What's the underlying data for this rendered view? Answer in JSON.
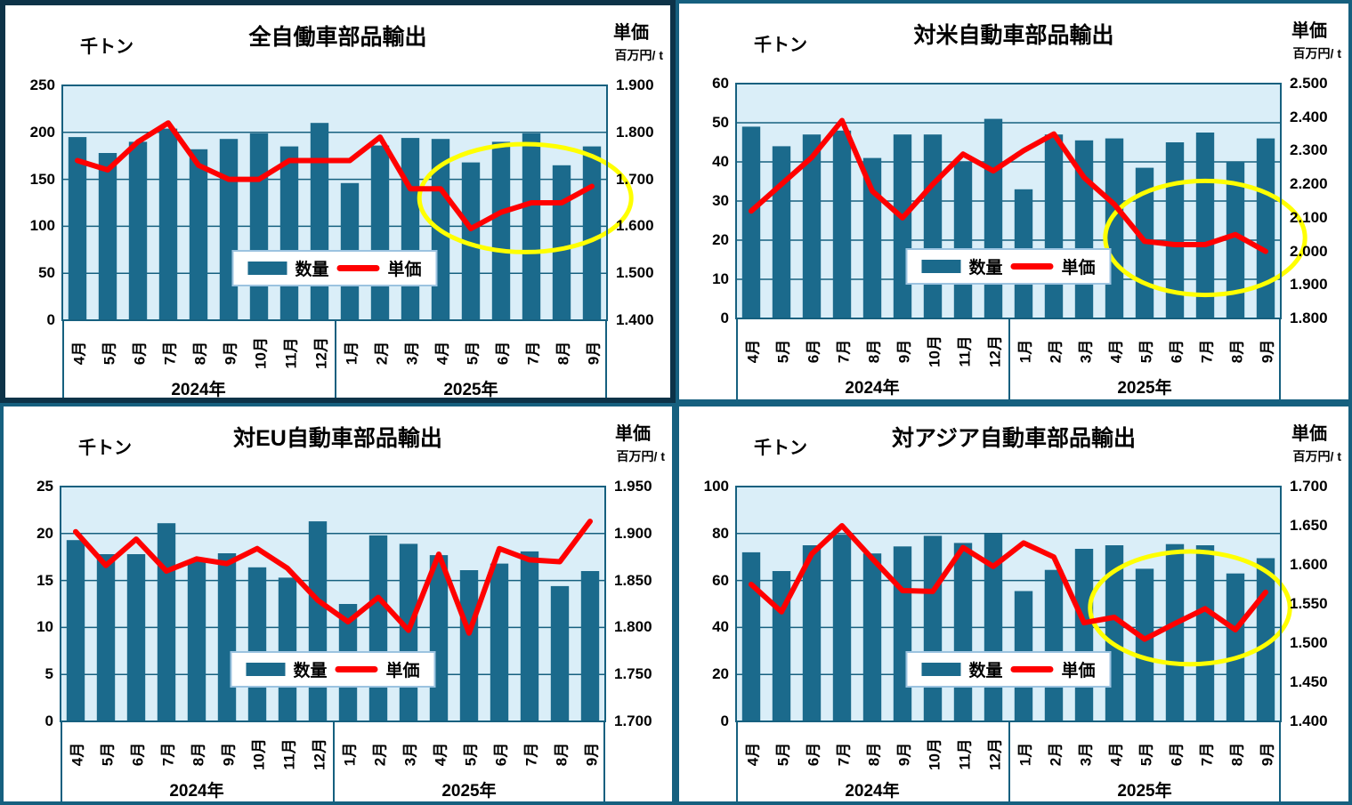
{
  "colors": {
    "bar": "#1B6A8C",
    "line": "#FF0000",
    "plot_bg": "#DAEEF8",
    "grid": "#16607F",
    "panel_border": "#16607F",
    "selected_panel_border": "#0D3348",
    "highlight": "#FFFF00",
    "legend_border": "#9CC3E0",
    "text": "#000000"
  },
  "legend": {
    "quantity": "数量",
    "price": "単価"
  },
  "months": [
    "4月",
    "5月",
    "6月",
    "7月",
    "8月",
    "9月",
    "10月",
    "11月",
    "12月",
    "1月",
    "2月",
    "3月",
    "4月",
    "5月",
    "6月",
    "7月",
    "8月",
    "9月"
  ],
  "year_groups": [
    {
      "label": "2024年",
      "months": 9
    },
    {
      "label": "2025年",
      "months": 9
    }
  ],
  "chart_data": [
    {
      "type": "bar+line",
      "title": "全自働車部品輸出",
      "left_axis": {
        "unit": "千トン",
        "min": 0,
        "max": 250,
        "step": 50,
        "labels": [
          "0",
          "50",
          "100",
          "150",
          "200",
          "250"
        ]
      },
      "right_axis": {
        "unit": "単価",
        "sub_unit": "百万円/ t",
        "min": 1.4,
        "max": 1.9,
        "step": 0.1,
        "labels": [
          "1.400",
          "1.500",
          "1.600",
          "1.700",
          "1.800",
          "1.900"
        ]
      },
      "series": [
        {
          "name": "数量",
          "kind": "bar",
          "axis": "left",
          "values": [
            195,
            178,
            190,
            204,
            182,
            193,
            199,
            185,
            210,
            146,
            186,
            194,
            193,
            168,
            190,
            199,
            165,
            185
          ]
        },
        {
          "name": "単価",
          "kind": "line",
          "axis": "right",
          "values": [
            1.74,
            1.72,
            1.78,
            1.82,
            1.73,
            1.7,
            1.7,
            1.74,
            1.74,
            1.74,
            1.79,
            1.68,
            1.68,
            1.595,
            1.63,
            1.65,
            1.65,
            1.685
          ]
        }
      ],
      "highlight_ellipse": {
        "cx_month": 14.8,
        "cy_price": 1.66,
        "rx_months": 3.5,
        "ry_price": 0.115
      }
    },
    {
      "type": "bar+line",
      "title": "対米自動車部品輸出",
      "left_axis": {
        "unit": "千トン",
        "min": 0,
        "max": 60,
        "step": 10,
        "labels": [
          "0",
          "10",
          "20",
          "30",
          "40",
          "50",
          "60"
        ]
      },
      "right_axis": {
        "unit": "単価",
        "sub_unit": "百万円/ t",
        "min": 1.8,
        "max": 2.5,
        "step": 0.1,
        "labels": [
          "1.800",
          "1.900",
          "2.000",
          "2.100",
          "2.200",
          "2.300",
          "2.400",
          "2.500"
        ]
      },
      "series": [
        {
          "name": "数量",
          "kind": "bar",
          "axis": "left",
          "values": [
            49,
            44,
            47,
            48,
            41,
            47,
            47,
            40,
            51,
            33,
            47,
            45.5,
            46,
            38.5,
            45,
            47.5,
            40,
            46
          ]
        },
        {
          "name": "単価",
          "kind": "line",
          "axis": "right",
          "values": [
            2.12,
            2.2,
            2.28,
            2.39,
            2.18,
            2.1,
            2.2,
            2.29,
            2.24,
            2.3,
            2.35,
            2.22,
            2.14,
            2.03,
            2.02,
            2.02,
            2.05,
            2.0
          ]
        }
      ],
      "highlight_ellipse": {
        "cx_month": 15.0,
        "cy_price": 2.04,
        "rx_months": 3.3,
        "ry_price": 0.17
      }
    },
    {
      "type": "bar+line",
      "title": "対EU自動車部品輸出",
      "left_axis": {
        "unit": "千トン",
        "min": 0,
        "max": 25,
        "step": 5,
        "labels": [
          "0",
          "5",
          "10",
          "15",
          "20",
          "25"
        ]
      },
      "right_axis": {
        "unit": "単価",
        "sub_unit": "百万円/ t",
        "min": 1.7,
        "max": 1.95,
        "step": 0.05,
        "labels": [
          "1.700",
          "1.750",
          "1.800",
          "1.850",
          "1.900",
          "1.950"
        ]
      },
      "series": [
        {
          "name": "数量",
          "kind": "bar",
          "axis": "left",
          "values": [
            19.3,
            17.8,
            17.8,
            21.1,
            17.0,
            17.9,
            16.4,
            15.3,
            21.3,
            12.5,
            19.8,
            18.9,
            17.7,
            16.1,
            16.8,
            18.1,
            14.4,
            16.0
          ]
        },
        {
          "name": "単価",
          "kind": "line",
          "axis": "right",
          "values": [
            1.902,
            1.866,
            1.894,
            1.86,
            1.873,
            1.868,
            1.884,
            1.863,
            1.829,
            1.806,
            1.832,
            1.797,
            1.878,
            1.794,
            1.884,
            1.872,
            1.87,
            1.913
          ]
        }
      ],
      "highlight_ellipse": null
    },
    {
      "type": "bar+line",
      "title": "対アジア自動車部品輸出",
      "left_axis": {
        "unit": "千トン",
        "min": 0,
        "max": 100,
        "step": 20,
        "labels": [
          "0",
          "20",
          "40",
          "60",
          "80",
          "100"
        ]
      },
      "right_axis": {
        "unit": "単価",
        "sub_unit": "百万円/ t",
        "min": 1.4,
        "max": 1.7,
        "step": 0.05,
        "labels": [
          "1.400",
          "1.450",
          "1.500",
          "1.550",
          "1.600",
          "1.650",
          "1.700"
        ]
      },
      "series": [
        {
          "name": "数量",
          "kind": "bar",
          "axis": "left",
          "values": [
            72,
            64,
            75,
            79.5,
            71.5,
            74.5,
            79,
            76,
            80,
            55.5,
            64.5,
            73.5,
            75,
            65,
            75.5,
            75,
            63,
            69.5
          ]
        },
        {
          "name": "単価",
          "kind": "line",
          "axis": "right",
          "values": [
            1.575,
            1.54,
            1.614,
            1.65,
            1.608,
            1.567,
            1.566,
            1.622,
            1.598,
            1.628,
            1.61,
            1.526,
            1.533,
            1.505,
            1.525,
            1.544,
            1.517,
            1.565
          ]
        }
      ],
      "highlight_ellipse": {
        "cx_month": 14.5,
        "cy_price": 1.545,
        "rx_months": 3.3,
        "ry_price": 0.072
      }
    }
  ]
}
